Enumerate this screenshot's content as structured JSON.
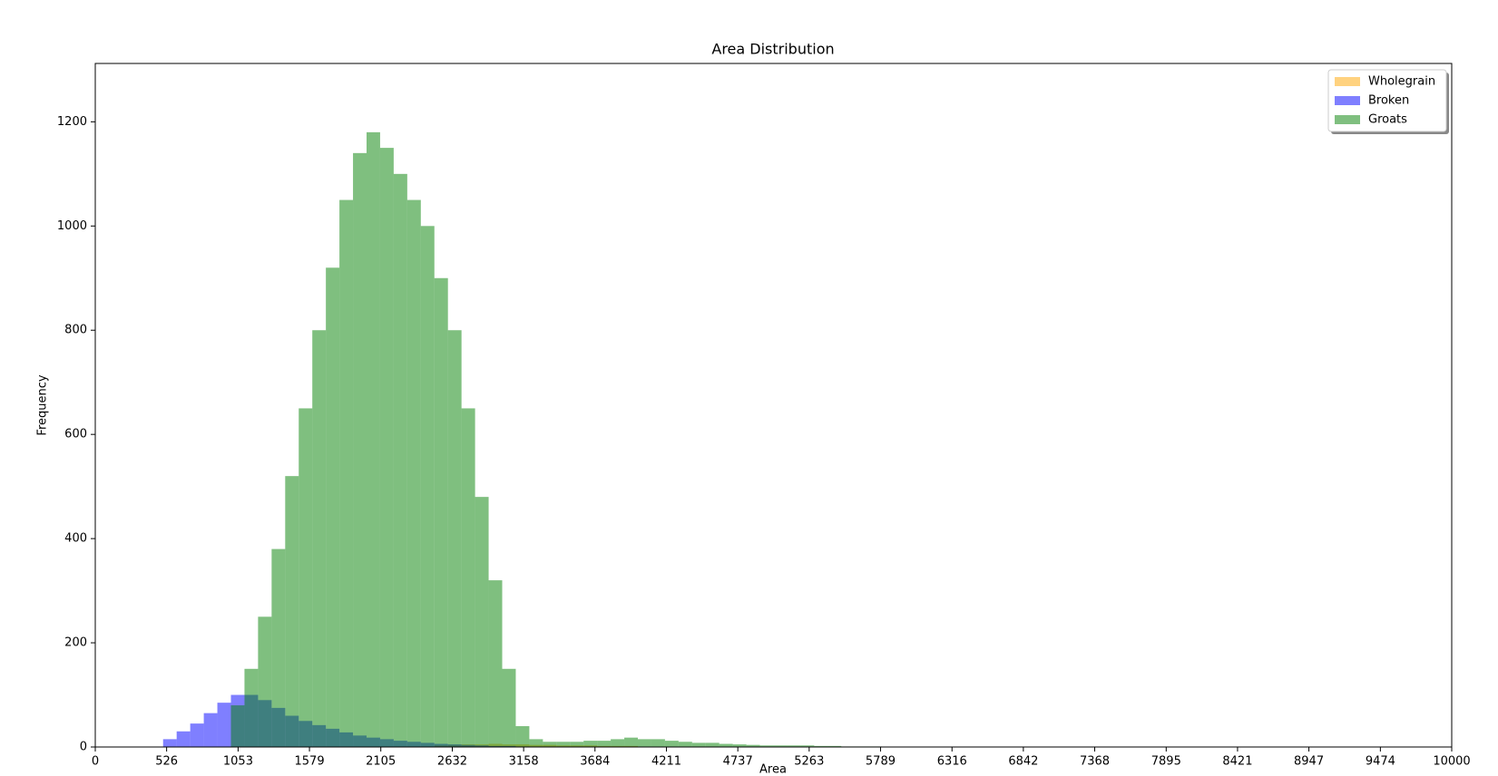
{
  "chart_data": {
    "type": "histogram",
    "title": "Area Distribution",
    "x_label": "Area",
    "y_label": "Frequency",
    "xlim": [
      0,
      10000
    ],
    "ylim": [
      0,
      1312
    ],
    "xticks": [
      0,
      526,
      1053,
      1579,
      2105,
      2632,
      3158,
      3684,
      4211,
      4737,
      5263,
      5789,
      6316,
      6842,
      7368,
      7895,
      8421,
      8947,
      9474,
      10000
    ],
    "yticks": [
      0,
      200,
      400,
      600,
      800,
      1000,
      1200
    ],
    "legend": "upper right",
    "alpha": 0.5,
    "series": [
      {
        "name": "Wholegrain",
        "color": "#ffa500",
        "bins": [
          2500,
          2600,
          2700,
          2800,
          2900,
          3000,
          3100,
          3200,
          3300,
          3400,
          3500,
          3600,
          3700,
          3800,
          3900,
          4000
        ],
        "values": [
          3,
          4,
          5,
          5,
          6,
          5,
          5,
          4,
          4,
          3,
          3,
          3,
          2,
          2,
          2
        ]
      },
      {
        "name": "Broken",
        "color": "#0000ff",
        "bins": [
          500,
          600,
          700,
          800,
          900,
          1000,
          1100,
          1200,
          1300,
          1400,
          1500,
          1600,
          1700,
          1800,
          1900,
          2000,
          2100,
          2200,
          2300,
          2400,
          2500,
          2600,
          2700,
          2800,
          2900,
          3000,
          3100,
          3200
        ],
        "values": [
          15,
          30,
          45,
          65,
          85,
          100,
          100,
          90,
          75,
          60,
          50,
          42,
          35,
          28,
          22,
          18,
          15,
          12,
          10,
          8,
          6,
          5,
          4,
          3,
          2,
          2,
          1
        ]
      },
      {
        "name": "Groats",
        "color": "#008000",
        "bins": [
          1000,
          1100,
          1200,
          1300,
          1400,
          1500,
          1600,
          1700,
          1800,
          1900,
          2000,
          2100,
          2200,
          2300,
          2400,
          2500,
          2600,
          2700,
          2800,
          2900,
          3000,
          3100,
          3200,
          3300,
          3400,
          3500,
          3600,
          3700,
          3800,
          3900,
          4000,
          4100,
          4200,
          4300,
          4400,
          4500,
          4600,
          4700,
          4800,
          4900,
          5000,
          5100,
          5200,
          5300,
          5400,
          5500,
          5600,
          5700,
          5800
        ],
        "values": [
          80,
          150,
          250,
          380,
          520,
          650,
          800,
          920,
          1050,
          1140,
          1180,
          1150,
          1100,
          1050,
          1000,
          900,
          800,
          650,
          480,
          320,
          150,
          40,
          15,
          10,
          10,
          10,
          12,
          12,
          15,
          18,
          15,
          15,
          12,
          10,
          8,
          8,
          6,
          5,
          4,
          3,
          3,
          3,
          3,
          2,
          2,
          1,
          1,
          1
        ]
      }
    ]
  }
}
